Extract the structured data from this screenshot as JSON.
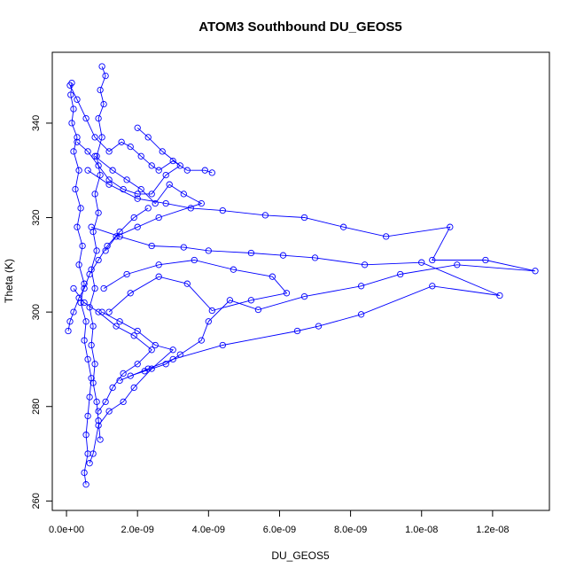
{
  "chart_data": {
    "type": "line",
    "title": "ATOM3 Southbound DU_GEOS5",
    "xlabel": "DU_GEOS5",
    "ylabel": "Theta (K)",
    "xlim": [
      -4e-10,
      1.36e-08
    ],
    "ylim": [
      258,
      355
    ],
    "x_ticks": [
      0,
      2e-09,
      4e-09,
      6e-09,
      8e-09,
      1e-08,
      1.2e-08
    ],
    "x_tick_labels": [
      "0.0e+00",
      "2.0e-09",
      "4.0e-09",
      "6.0e-09",
      "8.0e-09",
      "1.0e-08",
      "1.2e-08"
    ],
    "y_ticks": [
      260,
      280,
      300,
      320,
      340
    ],
    "y_tick_labels": [
      "260",
      "280",
      "300",
      "320",
      "340"
    ],
    "grid": false,
    "marker": "open-circle",
    "color": "#0000ff",
    "series": [
      {
        "values": [
          [
            1.5e-10,
            348.5
          ],
          [
            1.2e-10,
            346
          ],
          [
            2e-10,
            343
          ],
          [
            1.5e-10,
            340
          ],
          [
            3e-10,
            337
          ],
          [
            2e-10,
            334
          ],
          [
            3.5e-10,
            330
          ],
          [
            2.5e-10,
            326
          ],
          [
            4e-10,
            322
          ],
          [
            3e-10,
            318
          ],
          [
            4.5e-10,
            314
          ],
          [
            3.5e-10,
            310
          ],
          [
            5e-10,
            306
          ],
          [
            4e-10,
            302
          ],
          [
            5.5e-10,
            298
          ],
          [
            5e-10,
            294
          ],
          [
            6e-10,
            290
          ],
          [
            7e-10,
            286
          ],
          [
            6.5e-10,
            282
          ],
          [
            6e-10,
            278
          ],
          [
            5.5e-10,
            274
          ],
          [
            6e-10,
            270
          ],
          [
            5e-10,
            266
          ],
          [
            5.5e-10,
            263.5
          ]
        ]
      },
      {
        "values": [
          [
            1e-09,
            352
          ],
          [
            1.1e-09,
            350
          ],
          [
            9.5e-10,
            347
          ],
          [
            1.05e-09,
            344
          ],
          [
            9e-10,
            341
          ],
          [
            1e-09,
            337
          ],
          [
            8.5e-10,
            333
          ],
          [
            9.5e-10,
            329
          ],
          [
            8e-10,
            325
          ],
          [
            9e-10,
            321
          ],
          [
            7.5e-10,
            317
          ],
          [
            8.5e-10,
            313
          ],
          [
            7e-10,
            309
          ],
          [
            8e-10,
            305
          ],
          [
            6.5e-10,
            301
          ],
          [
            7.5e-10,
            297
          ],
          [
            7e-10,
            293
          ],
          [
            8e-10,
            289
          ],
          [
            7.5e-10,
            285
          ],
          [
            8.5e-10,
            281
          ],
          [
            9e-10,
            277
          ],
          [
            9.5e-10,
            273
          ]
        ]
      },
      {
        "values": [
          [
            1e-10,
            348
          ],
          [
            3e-10,
            345
          ],
          [
            5.5e-10,
            341
          ],
          [
            8e-10,
            337
          ],
          [
            1.2e-09,
            334
          ],
          [
            1.55e-09,
            336
          ],
          [
            1.8e-09,
            335
          ],
          [
            2.1e-09,
            333
          ],
          [
            2.4e-09,
            331
          ],
          [
            2.6e-09,
            330
          ],
          [
            3e-09,
            332
          ],
          [
            3.4e-09,
            330
          ],
          [
            3.9e-09,
            330
          ],
          [
            4.1e-09,
            329.5
          ]
        ]
      },
      {
        "values": [
          [
            6e-10,
            330
          ],
          [
            1.2e-09,
            327
          ],
          [
            2e-09,
            324
          ],
          [
            2.8e-09,
            323
          ],
          [
            3.5e-09,
            322
          ],
          [
            4.4e-09,
            321.5
          ],
          [
            5.6e-09,
            320.5
          ],
          [
            6.7e-09,
            320
          ],
          [
            7.8e-09,
            318
          ],
          [
            9e-09,
            316
          ],
          [
            1.08e-08,
            318
          ],
          [
            1.03e-08,
            311
          ],
          [
            1.18e-08,
            311
          ],
          [
            1.32e-08,
            308.7
          ],
          [
            1.1e-08,
            310
          ],
          [
            9.4e-09,
            308
          ],
          [
            8.3e-09,
            305.5
          ],
          [
            6.7e-09,
            303.3
          ],
          [
            5.4e-09,
            300.5
          ],
          [
            4.6e-09,
            302.5
          ],
          [
            4e-09,
            298
          ],
          [
            3.8e-09,
            294
          ],
          [
            3.2e-09,
            291
          ],
          [
            2.8e-09,
            289
          ],
          [
            2.2e-09,
            287.5
          ],
          [
            1.8e-09,
            286.5
          ]
        ]
      },
      {
        "values": [
          [
            7e-10,
            318
          ],
          [
            1.5e-09,
            316
          ],
          [
            2.4e-09,
            314
          ],
          [
            3.3e-09,
            313.7
          ],
          [
            4e-09,
            313
          ],
          [
            5.2e-09,
            312.5
          ],
          [
            6.1e-09,
            312
          ],
          [
            7e-09,
            311.5
          ],
          [
            8.4e-09,
            310
          ],
          [
            1e-08,
            310.5
          ],
          [
            1.22e-08,
            303.5
          ],
          [
            1.03e-08,
            305.5
          ],
          [
            8.3e-09,
            299.5
          ],
          [
            7.1e-09,
            297
          ],
          [
            6.5e-09,
            296
          ],
          [
            4.4e-09,
            293
          ],
          [
            3e-09,
            290
          ],
          [
            2.3e-09,
            288
          ],
          [
            1.5e-09,
            285.5
          ]
        ]
      },
      {
        "values": [
          [
            1.05e-09,
            305
          ],
          [
            1.7e-09,
            308
          ],
          [
            2.6e-09,
            310
          ],
          [
            3.6e-09,
            311
          ],
          [
            4.7e-09,
            309
          ],
          [
            5.8e-09,
            307.5
          ],
          [
            6.2e-09,
            304
          ],
          [
            5.2e-09,
            302.5
          ],
          [
            4.1e-09,
            300.3
          ],
          [
            3.4e-09,
            306
          ],
          [
            2.6e-09,
            307.5
          ],
          [
            1.8e-09,
            304
          ],
          [
            1.2e-09,
            300
          ]
        ]
      },
      {
        "values": [
          [
            8e-10,
            333
          ],
          [
            1.3e-09,
            330
          ],
          [
            1.7e-09,
            328
          ],
          [
            2.1e-09,
            326
          ],
          [
            2.5e-09,
            323
          ],
          [
            2.9e-09,
            327
          ],
          [
            3.3e-09,
            325
          ],
          [
            3.8e-09,
            323
          ],
          [
            2.6e-09,
            320
          ],
          [
            2e-09,
            318
          ],
          [
            1.4e-09,
            316
          ],
          [
            1.1e-09,
            313
          ]
        ]
      },
      {
        "values": [
          [
            1e-09,
            300
          ],
          [
            1.5e-09,
            298
          ],
          [
            2e-09,
            296
          ],
          [
            2.5e-09,
            293
          ],
          [
            3e-09,
            292
          ],
          [
            2.4e-09,
            288
          ],
          [
            1.9e-09,
            284
          ],
          [
            1.6e-09,
            281
          ],
          [
            1.2e-09,
            279
          ],
          [
            9e-10,
            276
          ],
          [
            7.5e-10,
            270
          ],
          [
            6.5e-10,
            268
          ]
        ]
      },
      {
        "values": [
          [
            2e-10,
            305
          ],
          [
            5e-10,
            302
          ],
          [
            9e-10,
            300
          ],
          [
            1.4e-09,
            297
          ],
          [
            1.9e-09,
            295
          ],
          [
            2.4e-09,
            292
          ],
          [
            2e-09,
            289
          ],
          [
            1.6e-09,
            287
          ],
          [
            1.3e-09,
            284
          ],
          [
            1.1e-09,
            281
          ],
          [
            9e-10,
            279
          ]
        ]
      },
      {
        "values": [
          [
            5e-11,
            296
          ],
          [
            1e-10,
            298
          ],
          [
            2e-10,
            300
          ],
          [
            3.5e-10,
            303
          ],
          [
            5e-10,
            305
          ],
          [
            6.5e-10,
            308
          ],
          [
            9e-10,
            311
          ],
          [
            1.15e-09,
            314
          ],
          [
            1.5e-09,
            317
          ],
          [
            1.9e-09,
            320
          ],
          [
            2.3e-09,
            322
          ]
        ]
      },
      {
        "values": [
          [
            3e-10,
            336
          ],
          [
            6e-10,
            334
          ],
          [
            9e-10,
            331
          ],
          [
            1.2e-09,
            328
          ],
          [
            1.6e-09,
            326
          ],
          [
            2e-09,
            325
          ],
          [
            2.4e-09,
            325
          ],
          [
            2.8e-09,
            329
          ],
          [
            3.2e-09,
            331
          ],
          [
            2.7e-09,
            334
          ],
          [
            2.3e-09,
            337
          ],
          [
            2e-09,
            339
          ]
        ]
      }
    ]
  }
}
